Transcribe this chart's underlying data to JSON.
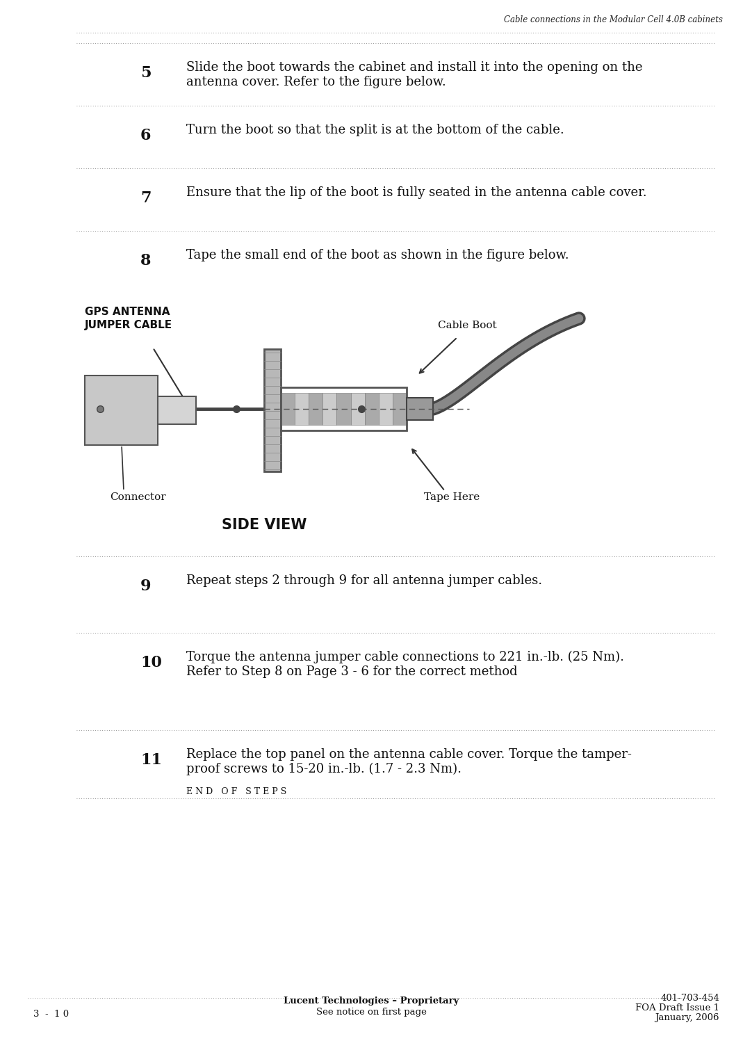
{
  "bg_color": "#ffffff",
  "header_text": "Cable connections in the Modular Cell 4.0B cabinets",
  "footer_left": "3  -  1 0",
  "footer_center_line1": "Lucent Technologies – Proprietary",
  "footer_center_line2": "See notice on first page",
  "footer_right_line1": "401-703-454",
  "footer_right_line2": "FOA Draft Issue 1",
  "footer_right_line3": "January, 2006",
  "steps": [
    {
      "number": "5",
      "text": "Slide the boot towards the cabinet and install it into the opening on the\nantenna cover. Refer to the figure below."
    },
    {
      "number": "6",
      "text": "Turn the boot so that the split is at the bottom of the cable."
    },
    {
      "number": "7",
      "text": "Ensure that the lip of the boot is fully seated in the antenna cable cover."
    },
    {
      "number": "8",
      "text": "Tape the small end of the boot as shown in the figure below."
    },
    {
      "number": "9",
      "text": "Repeat steps 2 through 9 for all antenna jumper cables."
    },
    {
      "number": "10",
      "text": "Torque the antenna jumper cable connections to 221 in.-lb. (25 Nm).\nRefer to Step 8 on Page 3 - 6 for the correct method"
    },
    {
      "number": "11",
      "text": "Replace the top panel on the antenna cable cover. Torque the tamper-\nproof screws to 15-20 in.-lb. (1.7 - 2.3 Nm)."
    }
  ],
  "end_of_steps": "E N D   O F   S T E P S",
  "diagram_label_gps": "GPS ANTENNA\nJUMPER CABLE",
  "diagram_label_cable_boot": "Cable Boot",
  "diagram_label_connector": "Connector",
  "diagram_label_tape": "Tape Here",
  "diagram_label_side_view": "SIDE VIEW"
}
